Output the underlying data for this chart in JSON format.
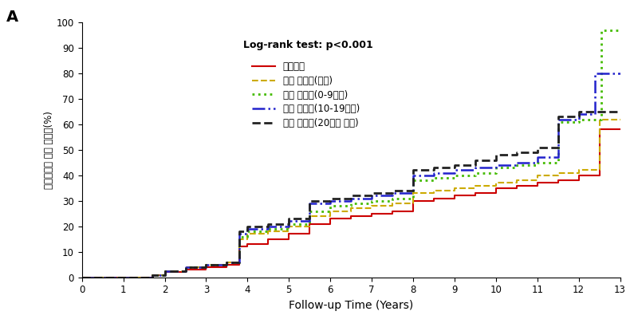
{
  "title_label": "A",
  "annotation": "Log-rank test: p<0.001",
  "xlabel": "Follow-up Time (Years)",
  "ylabel": "대사증후군 누적 발병률(%)",
  "xlim": [
    0,
    13
  ],
  "ylim": [
    0,
    100
  ],
  "xticks": [
    0,
    1,
    2,
    3,
    4,
    5,
    6,
    7,
    8,
    9,
    10,
    11,
    12,
    13
  ],
  "yticks": [
    0,
    10,
    20,
    30,
    40,
    50,
    60,
    70,
    80,
    90,
    100
  ],
  "background_color": "#ffffff",
  "series": [
    {
      "label": "비흡연자",
      "color": "#cc0000",
      "linestyle": "solid",
      "linewidth": 1.5,
      "x": [
        0,
        1.7,
        1.7,
        2.0,
        2.0,
        2.5,
        2.5,
        3.0,
        3.0,
        3.5,
        3.5,
        3.8,
        3.8,
        4.0,
        4.0,
        4.5,
        4.5,
        5.0,
        5.0,
        5.5,
        5.5,
        6.0,
        6.0,
        6.5,
        6.5,
        7.0,
        7.0,
        7.5,
        7.5,
        8.0,
        8.0,
        8.5,
        8.5,
        9.0,
        9.0,
        9.5,
        9.5,
        10.0,
        10.0,
        10.5,
        10.5,
        11.0,
        11.0,
        11.5,
        11.5,
        12.0,
        12.0,
        12.5,
        12.5,
        13.0
      ],
      "y": [
        0,
        0,
        1,
        1,
        2,
        2,
        3,
        3,
        4,
        4,
        5,
        5,
        12,
        12,
        13,
        13,
        15,
        15,
        17,
        17,
        21,
        21,
        23,
        23,
        24,
        24,
        25,
        25,
        26,
        26,
        30,
        30,
        31,
        31,
        32,
        32,
        33,
        33,
        35,
        35,
        36,
        36,
        37,
        37,
        38,
        38,
        40,
        40,
        58,
        58
      ]
    },
    {
      "label": "과거 흡연자(금연)",
      "color": "#ccaa00",
      "linestyle": "dashed",
      "linewidth": 1.5,
      "x": [
        0,
        1.7,
        1.7,
        2.0,
        2.0,
        2.5,
        2.5,
        3.0,
        3.0,
        3.5,
        3.5,
        3.8,
        3.8,
        4.0,
        4.0,
        4.5,
        4.5,
        5.0,
        5.0,
        5.5,
        5.5,
        6.0,
        6.0,
        6.5,
        6.5,
        7.0,
        7.0,
        7.5,
        7.5,
        8.0,
        8.0,
        8.5,
        8.5,
        9.0,
        9.0,
        9.5,
        9.5,
        10.0,
        10.0,
        10.5,
        10.5,
        11.0,
        11.0,
        11.5,
        11.5,
        12.0,
        12.0,
        12.5,
        12.5,
        13.0
      ],
      "y": [
        0,
        0,
        1,
        1,
        2.5,
        2.5,
        4,
        4,
        5,
        5,
        6,
        6,
        15,
        15,
        17,
        17,
        18,
        18,
        20,
        20,
        24,
        24,
        26,
        26,
        27,
        27,
        28,
        28,
        29,
        29,
        33,
        33,
        34,
        34,
        35,
        35,
        36,
        36,
        37,
        37,
        38,
        38,
        40,
        40,
        41,
        41,
        42,
        42,
        62,
        62
      ]
    },
    {
      "label": "현재 흡연자(0-9개비)",
      "color": "#44bb00",
      "linestyle": "dotted",
      "linewidth": 2.0,
      "x": [
        0,
        1.7,
        1.7,
        2.0,
        2.0,
        2.5,
        2.5,
        3.0,
        3.0,
        3.5,
        3.5,
        3.8,
        3.8,
        4.0,
        4.0,
        4.5,
        4.5,
        5.0,
        5.0,
        5.5,
        5.5,
        6.0,
        6.0,
        6.5,
        6.5,
        7.0,
        7.0,
        7.5,
        7.5,
        8.0,
        8.0,
        8.5,
        8.5,
        9.0,
        9.0,
        9.5,
        9.5,
        10.0,
        10.0,
        10.5,
        10.5,
        11.0,
        11.0,
        11.5,
        11.5,
        12.0,
        12.0,
        12.55,
        12.55,
        13.0
      ],
      "y": [
        0,
        0,
        1,
        1,
        2.5,
        2.5,
        4,
        4,
        5,
        5,
        6,
        6,
        16,
        16,
        18,
        18,
        19,
        19,
        21,
        21,
        26,
        26,
        28,
        28,
        29,
        29,
        30,
        30,
        31,
        31,
        38,
        38,
        39,
        39,
        40,
        40,
        41,
        41,
        43,
        43,
        44,
        44,
        45,
        45,
        61,
        61,
        62,
        62,
        97,
        97
      ]
    },
    {
      "label": "현재 흡연자(10-19개비)",
      "color": "#2222cc",
      "linestyle": "dashdot",
      "linewidth": 1.8,
      "x": [
        0,
        1.7,
        1.7,
        2.0,
        2.0,
        2.5,
        2.5,
        3.0,
        3.0,
        3.5,
        3.5,
        3.8,
        3.8,
        4.0,
        4.0,
        4.5,
        4.5,
        5.0,
        5.0,
        5.5,
        5.5,
        6.0,
        6.0,
        6.5,
        6.5,
        7.0,
        7.0,
        7.5,
        7.5,
        8.0,
        8.0,
        8.5,
        8.5,
        9.0,
        9.0,
        9.5,
        9.5,
        10.0,
        10.0,
        10.5,
        10.5,
        11.0,
        11.0,
        11.5,
        11.5,
        12.0,
        12.0,
        12.4,
        12.4,
        13.0
      ],
      "y": [
        0,
        0,
        1,
        1,
        2.5,
        2.5,
        4,
        4,
        5,
        5,
        6,
        6,
        17,
        17,
        19,
        19,
        20,
        20,
        22,
        22,
        29,
        29,
        30,
        30,
        31,
        31,
        32,
        32,
        33,
        33,
        40,
        40,
        41,
        41,
        42,
        42,
        43,
        43,
        44,
        44,
        45,
        45,
        47,
        47,
        62,
        62,
        64,
        64,
        80,
        80
      ]
    },
    {
      "label": "현재 흡연자(20개비 이상)",
      "color": "#222222",
      "linestyle": "dashed",
      "linewidth": 2.0,
      "x": [
        0,
        1.7,
        1.7,
        2.0,
        2.0,
        2.5,
        2.5,
        3.0,
        3.0,
        3.5,
        3.5,
        3.8,
        3.8,
        4.0,
        4.0,
        4.5,
        4.5,
        5.0,
        5.0,
        5.5,
        5.5,
        6.0,
        6.0,
        6.5,
        6.5,
        7.0,
        7.0,
        7.5,
        7.5,
        8.0,
        8.0,
        8.5,
        8.5,
        9.0,
        9.0,
        9.5,
        9.5,
        10.0,
        10.0,
        10.5,
        10.5,
        11.0,
        11.0,
        11.5,
        11.5,
        12.0,
        12.0,
        12.5,
        12.5,
        13.0
      ],
      "y": [
        0,
        0,
        1,
        1,
        2.5,
        2.5,
        4,
        4,
        5,
        5,
        6,
        6,
        18,
        18,
        20,
        20,
        21,
        21,
        23,
        23,
        30,
        30,
        31,
        31,
        32,
        32,
        33,
        33,
        34,
        34,
        42,
        42,
        43,
        43,
        44,
        44,
        46,
        46,
        48,
        48,
        49,
        49,
        51,
        51,
        63,
        63,
        65,
        65,
        65,
        65
      ]
    }
  ],
  "legend_entries": [
    {
      "label": "비흡연자",
      "color": "#cc0000",
      "linestyle": "solid",
      "linewidth": 1.5
    },
    {
      "label": "과거 흡연자(금연)",
      "color": "#ccaa00",
      "linestyle": "dashed",
      "linewidth": 1.5
    },
    {
      "label": "현재 흡연자(0-9개비)",
      "color": "#44bb00",
      "linestyle": "dotted",
      "linewidth": 2.0
    },
    {
      "label": "현재 흡연자(10-19개비)",
      "color": "#2222cc",
      "linestyle": "dashdot",
      "linewidth": 1.8
    },
    {
      "label": "현재 흡연자(20개비 이상)",
      "color": "#222222",
      "linestyle": "dashed",
      "linewidth": 2.0
    }
  ]
}
